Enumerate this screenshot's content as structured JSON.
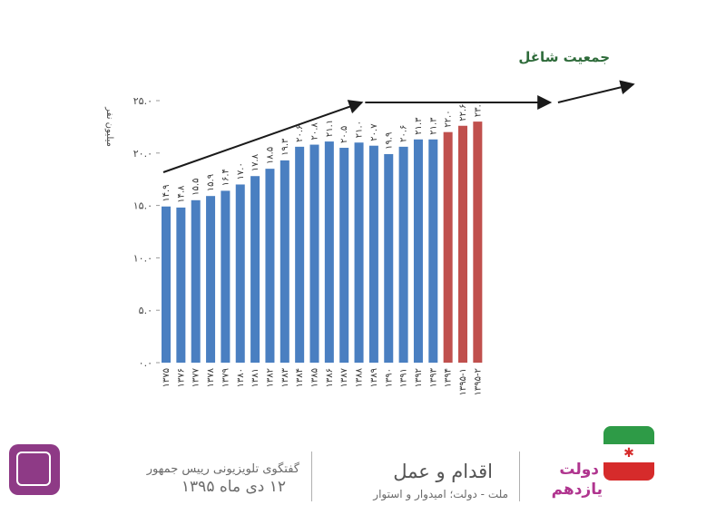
{
  "chart_data": {
    "type": "bar",
    "title": "جمعیت شاغل",
    "ylabel": "میلیون نفر",
    "ylim": [
      0,
      25
    ],
    "yticks": [
      0,
      5,
      10,
      15,
      20,
      25
    ],
    "ytick_labels": [
      "۰.۰",
      "۵.۰",
      "۱۰.۰",
      "۱۵.۰",
      "۲۰.۰",
      "۲۵.۰"
    ],
    "categories": [
      "۱۳۷۵",
      "۱۳۷۶",
      "۱۳۷۷",
      "۱۳۷۸",
      "۱۳۷۹",
      "۱۳۸۰",
      "۱۳۸۱",
      "۱۳۸۲",
      "۱۳۸۳",
      "۱۳۸۴",
      "۱۳۸۵",
      "۱۳۸۶",
      "۱۳۸۷",
      "۱۳۸۸",
      "۱۳۸۹",
      "۱۳۹۰",
      "۱۳۹۱",
      "۱۳۹۲",
      "۱۳۹۳",
      "۱۳۹۴",
      "۱۳۹۵-۱",
      "۱۳۹۵-۲"
    ],
    "values": [
      14.9,
      14.8,
      15.5,
      15.9,
      16.4,
      17.0,
      17.8,
      18.5,
      19.3,
      20.6,
      20.8,
      21.1,
      20.5,
      21.0,
      20.7,
      19.9,
      20.6,
      21.3,
      21.3,
      22.0,
      22.6,
      23.0
    ],
    "value_labels": [
      "۱۴.۹",
      "۱۴.۸",
      "۱۵.۵",
      "۱۵.۹",
      "۱۶.۴",
      "۱۷.۰",
      "۱۷.۸",
      "۱۸.۵",
      "۱۹.۳",
      "۲۰.۶",
      "۲۰.۸",
      "۲۱.۱",
      "۲۰.۵",
      "۲۱.۰",
      "۲۰.۷",
      "۱۹.۹",
      "۲۰.۶",
      "۲۱.۳",
      "۲۱.۳",
      "۲۲.۰",
      "۲۲.۶",
      "۲۳.۰"
    ],
    "highlight_from_index": 19,
    "colors": {
      "bar": "#4a7fc1",
      "highlight": "#c0504d",
      "arrow": "#1a1a1a",
      "title": "#2e6b3a",
      "axis_text": "#444444"
    },
    "grid": false
  },
  "footer": {
    "broadcast_line1": "گفتگوی تلویزیونی رییس جمهور",
    "broadcast_line2": "۱۲ دی ماه ۱۳۹۵",
    "slogan_title": "اقدام و عمل",
    "slogan_subtitle": "ملت - دولت؛ امیدوار و استوار",
    "gov_line1": "دولت",
    "gov_line2": "یازدهم",
    "gov_color": "#b0358f"
  }
}
